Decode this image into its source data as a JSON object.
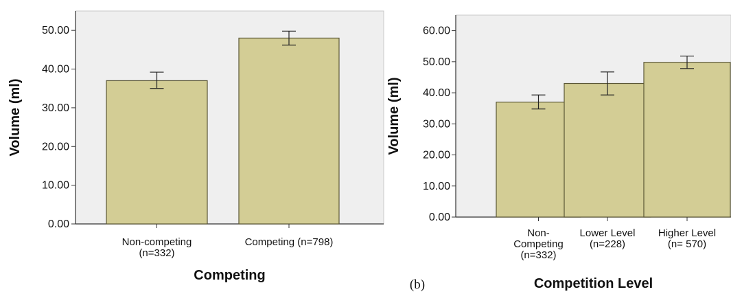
{
  "figure": {
    "panel_b_label": "(b)"
  },
  "colors": {
    "bar_fill": "#d3cd95",
    "bar_stroke": "#5a5635",
    "plot_background": "#efefef",
    "axis": "#333333"
  },
  "chart_data": [
    {
      "type": "bar",
      "title": "",
      "xlabel": "Competing",
      "ylabel": "Volume (ml)",
      "ylim": [
        0,
        55
      ],
      "ticks": [
        0,
        10,
        20,
        30,
        40,
        50
      ],
      "tick_labels": [
        "0.00",
        "10.00",
        "20.00",
        "30.00",
        "40.00",
        "50.00"
      ],
      "categories": [
        [
          "Non-competing",
          "(n=332)"
        ],
        [
          "Competing (n=798)"
        ]
      ],
      "values": [
        37.0,
        48.0
      ],
      "error_low": [
        35.0,
        46.2
      ],
      "error_high": [
        39.2,
        49.8
      ],
      "grid": false
    },
    {
      "type": "bar",
      "title": "",
      "xlabel": "Competition Level",
      "ylabel": "Volume (ml)",
      "ylim": [
        0,
        65
      ],
      "ticks": [
        0,
        10,
        20,
        30,
        40,
        50,
        60
      ],
      "tick_labels": [
        "0.00",
        "10.00",
        "20.00",
        "30.00",
        "40.00",
        "50.00",
        "60.00"
      ],
      "categories": [
        [
          "Non-",
          "Competing",
          "(n=332)"
        ],
        [
          "Lower Level",
          "(n=228)"
        ],
        [
          "Higher Level",
          "(n= 570)"
        ]
      ],
      "values": [
        37.0,
        43.0,
        49.8
      ],
      "error_low": [
        34.8,
        39.3,
        47.8
      ],
      "error_high": [
        39.3,
        46.7,
        51.8
      ],
      "grid": false
    }
  ]
}
